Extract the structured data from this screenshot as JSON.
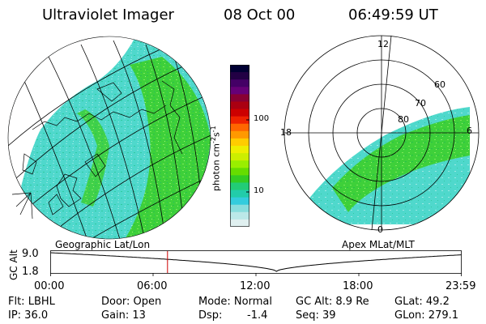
{
  "header": {
    "title": "Ultraviolet Imager",
    "date": "08 Oct 00",
    "time": "06:49:59 UT"
  },
  "colorbar": {
    "unit_label": "photon cm",
    "unit_sup1": "-2",
    "unit_mid": "s",
    "unit_sup2": "-1",
    "ticks": [
      "100",
      "10"
    ],
    "tick_values": [
      100,
      10
    ],
    "colors": [
      "#000033",
      "#220044",
      "#440066",
      "#660077",
      "#880033",
      "#aa0011",
      "#cc0000",
      "#ee2200",
      "#ff6600",
      "#ff9900",
      "#ffcc00",
      "#eeee00",
      "#ccee00",
      "#99ee00",
      "#66dd00",
      "#33cc22",
      "#22cc77",
      "#22ccaa",
      "#33ccdd",
      "#88dddd",
      "#bbe8e8",
      "#e0f0f0"
    ]
  },
  "left_panel": {
    "caption": "Geographic Lat/Lon",
    "aurora_color": "#3ed03a",
    "background_color": "#ffffff"
  },
  "right_panel": {
    "caption": "Apex MLat/MLT",
    "labels": {
      "top": "12",
      "left": "18",
      "right": "6",
      "bottom": "0",
      "lat60": "60",
      "lat70": "70",
      "lat80": "80"
    },
    "aurora_color": "#3ed03a"
  },
  "altitude_plot": {
    "y_label": "GC Alt",
    "y_max": "9.0",
    "y_min": "1.8",
    "x_ticks": [
      "00:00",
      "06:00",
      "12:00",
      "18:00",
      "23:59"
    ],
    "current_time_marker_hours": 6.83,
    "marker_color": "#cc0000"
  },
  "info": {
    "filter": "Flt: LBHL",
    "ip": "IP: 36.0",
    "door": "Door: Open",
    "gain": "Gain: 13",
    "mode": "Mode: Normal",
    "dsp_label": "Dsp:",
    "dsp_value": "-1.4",
    "gc_alt": "GC Alt: 8.9 Re",
    "seq": "Seq: 39",
    "glat": "GLat:  49.2",
    "glon": "GLon: 279.1"
  }
}
